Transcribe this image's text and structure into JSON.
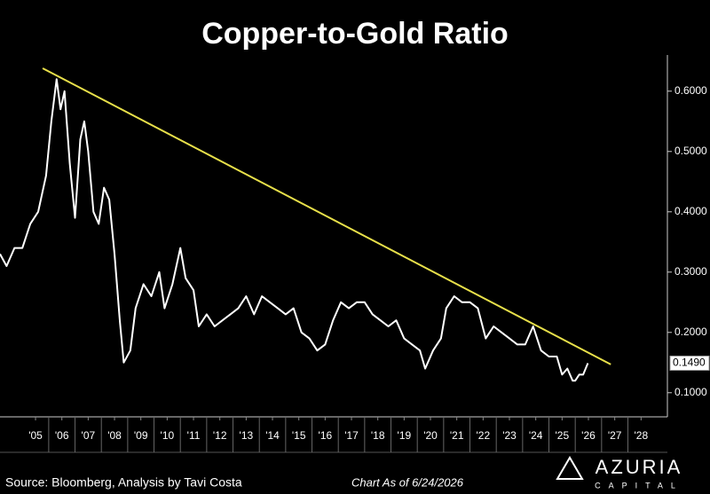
{
  "chart_data": {
    "type": "line",
    "title": "Copper-to-Gold Ratio",
    "source": "Source: Bloomberg, Analysis by Tavi Costa",
    "as_of": "Chart As of 6/24/2026",
    "brand": {
      "name": "AZURIA",
      "sub": "CAPITAL"
    },
    "x": [
      2004.15,
      2004.4,
      2004.7,
      2005.0,
      2005.3,
      2005.6,
      2005.9,
      2006.1,
      2006.3,
      2006.45,
      2006.6,
      2006.8,
      2007.0,
      2007.2,
      2007.35,
      2007.5,
      2007.7,
      2007.9,
      2008.1,
      2008.3,
      2008.5,
      2008.7,
      2008.85,
      2009.1,
      2009.3,
      2009.6,
      2009.9,
      2010.2,
      2010.4,
      2010.7,
      2011.0,
      2011.2,
      2011.5,
      2011.7,
      2012.0,
      2012.3,
      2012.6,
      2012.9,
      2013.2,
      2013.5,
      2013.8,
      2014.1,
      2014.4,
      2014.7,
      2015.0,
      2015.3,
      2015.6,
      2015.9,
      2016.2,
      2016.5,
      2016.8,
      2017.1,
      2017.4,
      2017.7,
      2018.0,
      2018.3,
      2018.6,
      2018.9,
      2019.2,
      2019.5,
      2019.8,
      2020.1,
      2020.3,
      2020.6,
      2020.9,
      2021.1,
      2021.4,
      2021.7,
      2022.0,
      2022.3,
      2022.6,
      2022.9,
      2023.2,
      2023.5,
      2023.8,
      2024.1,
      2024.4,
      2024.7,
      2025.0,
      2025.3,
      2025.5,
      2025.7,
      2025.9,
      2026.0,
      2026.15,
      2026.3,
      2026.48
    ],
    "values": [
      0.33,
      0.31,
      0.34,
      0.34,
      0.38,
      0.4,
      0.46,
      0.55,
      0.62,
      0.57,
      0.6,
      0.48,
      0.39,
      0.52,
      0.55,
      0.5,
      0.4,
      0.38,
      0.44,
      0.42,
      0.33,
      0.22,
      0.15,
      0.17,
      0.24,
      0.28,
      0.26,
      0.3,
      0.24,
      0.28,
      0.34,
      0.29,
      0.27,
      0.21,
      0.23,
      0.21,
      0.22,
      0.23,
      0.24,
      0.26,
      0.23,
      0.26,
      0.25,
      0.24,
      0.23,
      0.24,
      0.2,
      0.19,
      0.17,
      0.18,
      0.22,
      0.25,
      0.24,
      0.25,
      0.25,
      0.23,
      0.22,
      0.21,
      0.22,
      0.19,
      0.18,
      0.17,
      0.14,
      0.17,
      0.19,
      0.24,
      0.26,
      0.25,
      0.25,
      0.24,
      0.19,
      0.21,
      0.2,
      0.19,
      0.18,
      0.18,
      0.21,
      0.17,
      0.16,
      0.16,
      0.13,
      0.14,
      0.12,
      0.12,
      0.13,
      0.13,
      0.149
    ],
    "color": "#ffffff",
    "trendline": {
      "x": [
        2005.77,
        2027.35
      ],
      "values": [
        0.638,
        0.147
      ],
      "color": "#e8e04a"
    },
    "last_value_label": {
      "value": 0.149,
      "label": "0.1490"
    },
    "xlim": [
      2004.15,
      2029.5
    ],
    "ylim": [
      0.06,
      0.66
    ],
    "xticks": [
      {
        "value": 2005.5,
        "label": "'05"
      },
      {
        "value": 2006.5,
        "label": "'06"
      },
      {
        "value": 2007.5,
        "label": "'07"
      },
      {
        "value": 2008.5,
        "label": "'08"
      },
      {
        "value": 2009.5,
        "label": "'09"
      },
      {
        "value": 2010.5,
        "label": "'10"
      },
      {
        "value": 2011.5,
        "label": "'11"
      },
      {
        "value": 2012.5,
        "label": "'12"
      },
      {
        "value": 2013.5,
        "label": "'13"
      },
      {
        "value": 2014.5,
        "label": "'14"
      },
      {
        "value": 2015.5,
        "label": "'15"
      },
      {
        "value": 2016.5,
        "label": "'16"
      },
      {
        "value": 2017.5,
        "label": "'17"
      },
      {
        "value": 2018.5,
        "label": "'18"
      },
      {
        "value": 2019.5,
        "label": "'19"
      },
      {
        "value": 2020.5,
        "label": "'20"
      },
      {
        "value": 2021.5,
        "label": "'21"
      },
      {
        "value": 2022.5,
        "label": "'22"
      },
      {
        "value": 2023.5,
        "label": "'23"
      },
      {
        "value": 2024.5,
        "label": "'24"
      },
      {
        "value": 2025.5,
        "label": "'25"
      },
      {
        "value": 2026.5,
        "label": "'26"
      },
      {
        "value": 2027.5,
        "label": "'27"
      },
      {
        "value": 2028.5,
        "label": "'28"
      }
    ],
    "yticks": [
      {
        "value": 0.1,
        "label": "0.1000"
      },
      {
        "value": 0.2,
        "label": "0.2000"
      },
      {
        "value": 0.3,
        "label": "0.3000"
      },
      {
        "value": 0.4,
        "label": "0.4000"
      },
      {
        "value": 0.5,
        "label": "0.5000"
      },
      {
        "value": 0.6,
        "label": "0.6000"
      }
    ]
  }
}
